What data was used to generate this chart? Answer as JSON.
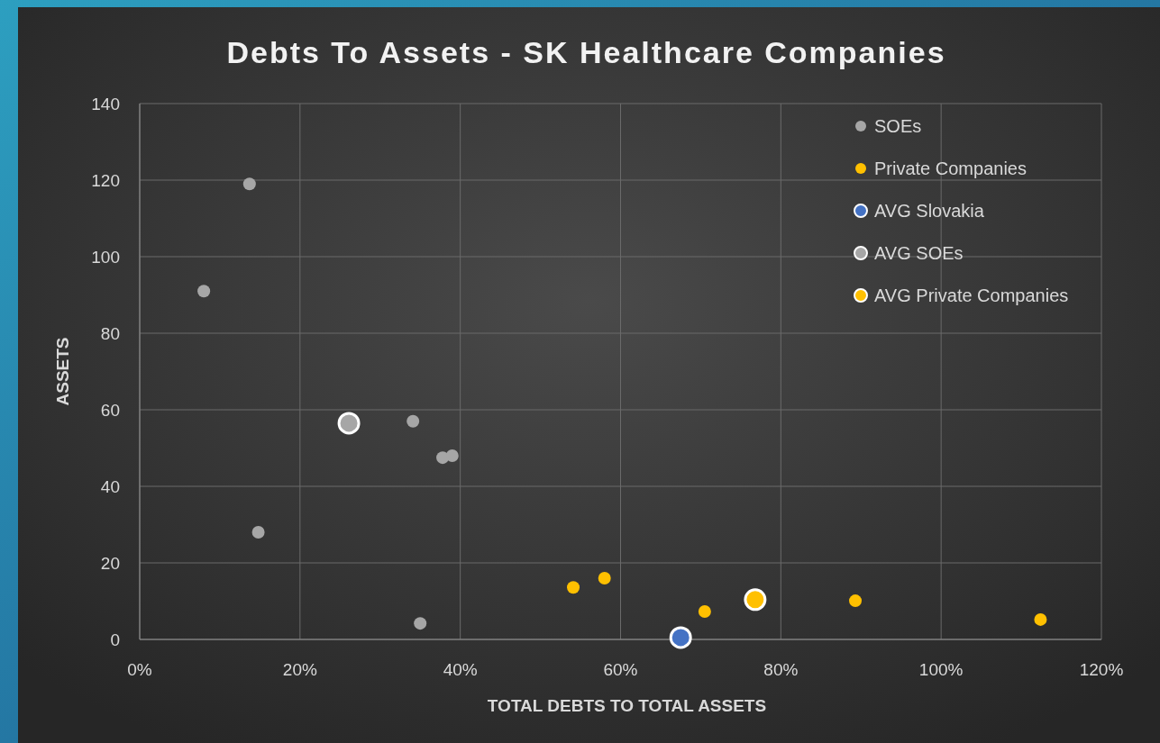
{
  "chart_data": {
    "type": "scatter",
    "title": "Debts To Assets - SK Healthcare  Companies",
    "xlabel": "TOTAL DEBTS TO TOTAL ASSETS",
    "ylabel": "ASSETS",
    "xlim": [
      0,
      120
    ],
    "xticks": [
      {
        "value": 0,
        "label": "0%"
      },
      {
        "value": 20,
        "label": "20%"
      },
      {
        "value": 40,
        "label": "40%"
      },
      {
        "value": 60,
        "label": "60%"
      },
      {
        "value": 80,
        "label": "80%"
      },
      {
        "value": 100,
        "label": "100%"
      },
      {
        "value": 120,
        "label": "120%"
      }
    ],
    "ylim": [
      0,
      140
    ],
    "yticks": [
      0,
      20,
      40,
      60,
      80,
      100,
      120,
      140
    ],
    "grid": true,
    "legend": "top right",
    "marker": "circle",
    "series": [
      {
        "name": "SOEs",
        "color": "#a6a6a6",
        "x": [
          13.7,
          8.0,
          14.8,
          34.1,
          37.8,
          39.0,
          35.0
        ],
        "values": [
          119,
          91,
          28,
          57,
          47.5,
          48,
          4.2
        ]
      },
      {
        "name": "Private Companies",
        "color": "#ffc000",
        "x": [
          54.1,
          58.0,
          70.5,
          89.3,
          112.4
        ],
        "values": [
          13.6,
          16,
          7.3,
          10.1,
          5.2
        ]
      },
      {
        "name": "AVG Slovakia",
        "color": "#4472c4",
        "x": [
          67.5
        ],
        "values": [
          0.5
        ]
      },
      {
        "name": "AVG SOEs",
        "color": "#a6a6a6",
        "x": [
          26.1
        ],
        "values": [
          56.5
        ]
      },
      {
        "name": "AVG Private Companies",
        "color": "#ffc000",
        "x": [
          76.8
        ],
        "values": [
          10.4
        ]
      }
    ]
  }
}
